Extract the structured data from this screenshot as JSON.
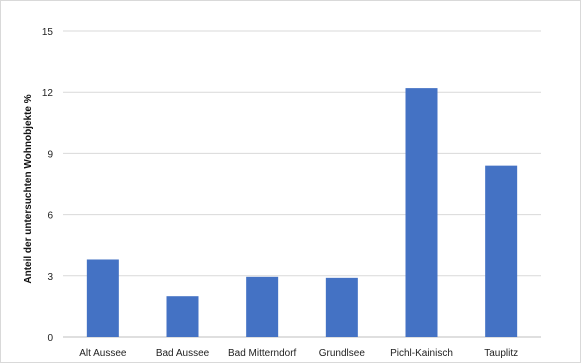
{
  "chart_data": {
    "type": "bar",
    "title": "",
    "xlabel": "",
    "ylabel": "Anteil der untersuchten Wohnobjekte  %",
    "categories": [
      "Alt Aussee",
      "Bad Aussee",
      "Bad Mitterndorf",
      "Grundlsee",
      "Pichl-Kainisch",
      "Tauplitz"
    ],
    "values": [
      3.8,
      2.0,
      2.95,
      2.9,
      12.2,
      8.4
    ],
    "ylim": [
      0,
      15
    ],
    "yticks": [
      0,
      3,
      6,
      9,
      12,
      15
    ],
    "grid": true,
    "legend": "none",
    "bar_color": "#4472c4",
    "grid_color": "#d9d9d9"
  }
}
